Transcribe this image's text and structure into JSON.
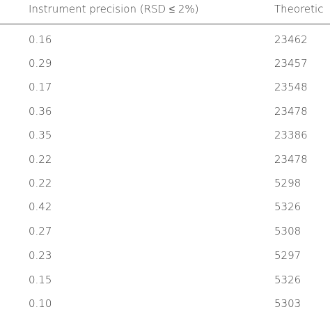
{
  "table": {
    "headers": [
      "Instrument precision (RSD ≤ 2%)",
      "Theoretic"
    ],
    "rows": [
      [
        "0.16",
        "23462"
      ],
      [
        "0.29",
        "23457"
      ],
      [
        "0.17",
        "23548"
      ],
      [
        "0.36",
        "23478"
      ],
      [
        "0.35",
        "23386"
      ],
      [
        "0.22",
        "23478"
      ],
      [
        "0.22",
        "5298"
      ],
      [
        "0.42",
        "5326"
      ],
      [
        "0.27",
        "5308"
      ],
      [
        "0.23",
        "5297"
      ],
      [
        "0.15",
        "5326"
      ],
      [
        "0.10",
        "5303"
      ]
    ]
  }
}
